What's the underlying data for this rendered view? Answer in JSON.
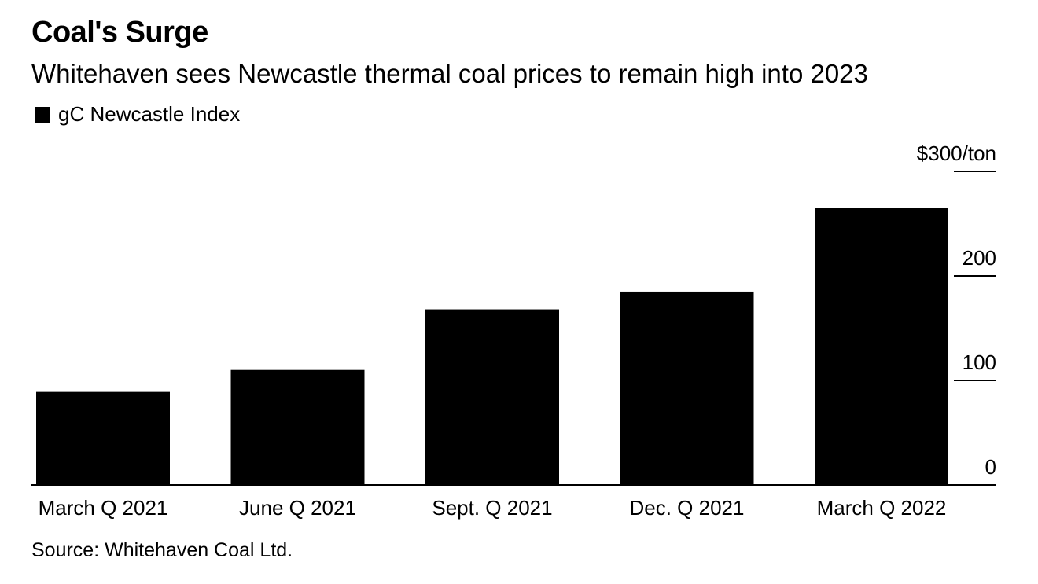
{
  "title": "Coal's Surge",
  "subtitle": "Whitehaven sees Newcastle thermal coal prices to remain high into 2023",
  "legend": {
    "label": "gC Newcastle Index"
  },
  "source": "Source: Whitehaven Coal Ltd.",
  "colors": {
    "bar": "#000000",
    "text": "#000000",
    "background": "#ffffff"
  },
  "chart_data": {
    "type": "bar",
    "title": "Coal's Surge",
    "subtitle": "Whitehaven sees Newcastle thermal coal prices to remain high into 2023",
    "categories": [
      "March Q 2021",
      "June Q 2021",
      "Sept. Q 2021",
      "Dec. Q 2021",
      "March Q 2022"
    ],
    "series": [
      {
        "name": "gC Newcastle Index",
        "values": [
          89,
          110,
          168,
          185,
          265
        ]
      }
    ],
    "xlabel": "",
    "ylabel": "",
    "ylim": [
      0,
      300
    ],
    "yticks": [
      0,
      100,
      200,
      300
    ],
    "ytick_labels": [
      "0",
      "100",
      "200",
      "$300/ton"
    ],
    "yaxis_side": "right",
    "legend_position": "top-left",
    "grid": false
  }
}
